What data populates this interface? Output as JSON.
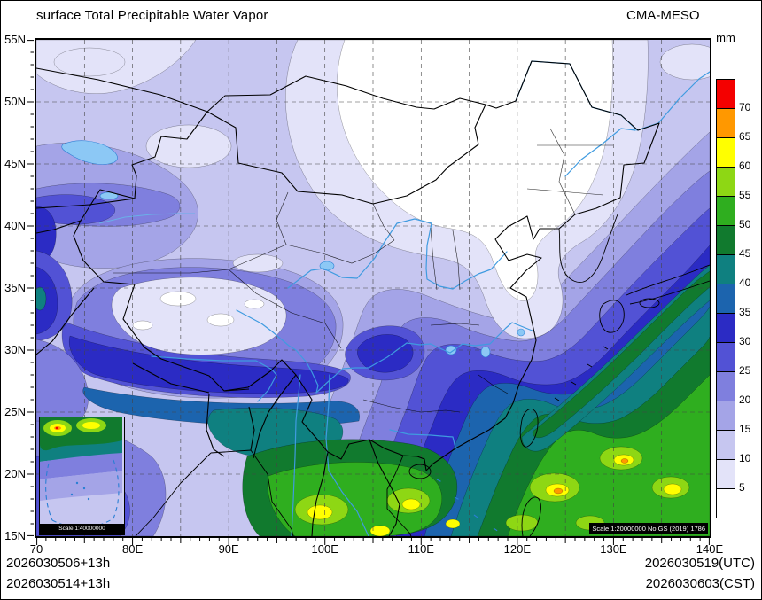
{
  "header": {
    "title": "surface Total Precipitable Water Vapor",
    "model": "CMA-MESO"
  },
  "colorbar": {
    "unit": "mm",
    "tick_labels": [
      "70",
      "65",
      "60",
      "55",
      "50",
      "45",
      "40",
      "35",
      "30",
      "25",
      "20",
      "15",
      "10",
      "5"
    ],
    "segment_colors_top_to_bottom": [
      "#f40000",
      "#ff9800",
      "#ffff00",
      "#8ed714",
      "#2fae1f",
      "#117a2e",
      "#0f8080",
      "#1c64ae",
      "#2b2bc4",
      "#5252d5",
      "#7f7fde",
      "#a4a4e7",
      "#c6c6f0",
      "#e3e3f9",
      "#ffffff"
    ]
  },
  "axes": {
    "lat_labels": [
      "55N",
      "50N",
      "45N",
      "40N",
      "35N",
      "30N",
      "25N",
      "20N",
      "15N"
    ],
    "lon_labels": [
      "70",
      "80E",
      "90E",
      "100E",
      "110E",
      "120E",
      "130E",
      "140E"
    ]
  },
  "footer": {
    "left_line1": "2026030506+13h",
    "left_line2": "2026030514+13h",
    "right_line1": "2026030519(UTC)",
    "right_line2": "2026030603(CST)"
  },
  "inset": {
    "scale_label": "Scale 1:40000000"
  },
  "map_scale": {
    "label": "Scale 1:20000000 No:GS (2019) 1786"
  },
  "chart_data": {
    "type": "heatmap",
    "variable": "surface Total Precipitable Water Vapor",
    "unit": "mm",
    "contour_levels": [
      5,
      10,
      15,
      20,
      25,
      30,
      35,
      40,
      45,
      50,
      55,
      60,
      65,
      70
    ],
    "lon_range": [
      70,
      140
    ],
    "lat_range": [
      15,
      55
    ],
    "grid_interval_deg": 5,
    "model": "CMA-MESO",
    "init_label_utc": "2026030506+13h",
    "init_label_cst": "2026030514+13h",
    "valid_utc": "2026030519(UTC)",
    "valid_cst": "2026030603(CST)",
    "pattern_summary": "Dry (<5mm, white) over Mongolia and North China; 5-15mm lavender over most of north and Tibet interior; 15-35mm blues along Tianshan, Himalaya rim, Sichuan and southeast China; 35-70mm teal-green-yellow maxima over the Bay of Bengal, Indochina, South China Sea and the western Pacific band toward Japan"
  }
}
